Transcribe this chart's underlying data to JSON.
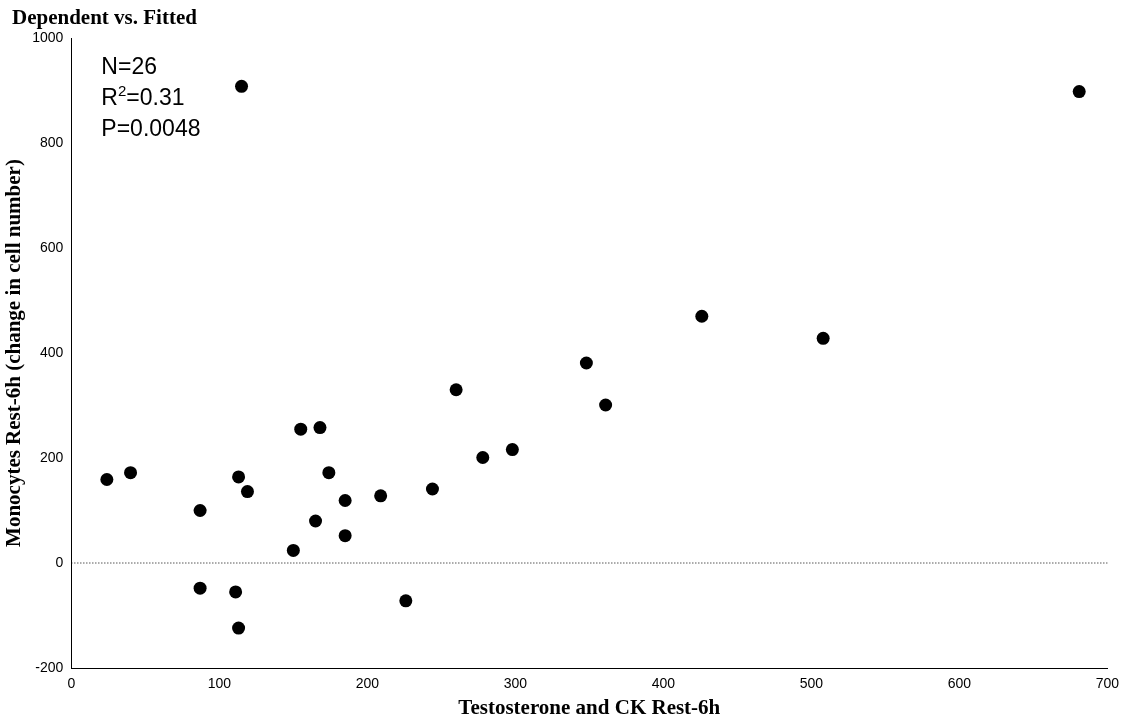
{
  "chart_data": {
    "type": "scatter",
    "title": "Dependent vs. Fitted",
    "xlabel": "Testosterone and CK Rest-6h",
    "ylabel": "Monocytes Rest-6h (change in cell number)",
    "annotations": [
      "N=26",
      "R$^{2}$=0.31",
      "P=0.0048"
    ],
    "x": [
      24,
      40,
      87,
      87,
      111,
      113,
      113,
      119,
      115,
      150,
      155,
      165,
      168,
      174,
      185,
      185,
      209,
      226,
      244,
      260,
      278,
      298,
      348,
      361,
      426,
      508,
      681
    ],
    "series": [
      {
        "color": "#000000",
        "values": [
          159,
          172,
          100,
          -48,
          -55,
          164,
          -124,
          136,
          908,
          24,
          255,
          80,
          258,
          172,
          119,
          52,
          128,
          -72,
          141,
          330,
          201,
          216,
          381,
          301,
          470,
          428,
          898
        ]
      }
    ],
    "xlim": [
      0,
      700
    ],
    "xticks": [
      0,
      100,
      200,
      300,
      400,
      500,
      600,
      700
    ],
    "ylim": [
      -200,
      1000
    ],
    "yticks": [
      -200,
      0,
      200,
      400,
      600,
      800,
      1000
    ],
    "ref_lines": [
      {
        "axis": "y",
        "value": 0,
        "line_style": "dotted",
        "color": "#000000"
      }
    ],
    "grid": false,
    "legend": false,
    "marker": "circle"
  }
}
